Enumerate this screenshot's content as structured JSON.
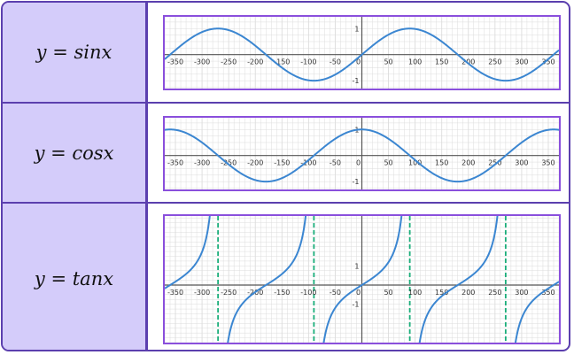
{
  "rows": [
    {
      "formula": "y = sinx",
      "function": "sin",
      "x_ticks": [
        "-350",
        "-300",
        "-250",
        "-200",
        "-150",
        "-100",
        "-50",
        "0",
        "50",
        "100",
        "150",
        "200",
        "250",
        "300",
        "350"
      ],
      "y_ticks": [
        "1",
        "-1"
      ],
      "xlim": [
        -370,
        370
      ],
      "ylim": [
        -1.3,
        1.45
      ]
    },
    {
      "formula": "y = cosx",
      "function": "cos",
      "x_ticks": [
        "-350",
        "-300",
        "-250",
        "-200",
        "-150",
        "-100",
        "-50",
        "0",
        "50",
        "100",
        "150",
        "200",
        "250",
        "300",
        "350"
      ],
      "y_ticks": [
        "1",
        "-1"
      ],
      "xlim": [
        -370,
        370
      ],
      "ylim": [
        -1.3,
        1.45
      ]
    },
    {
      "formula": "y = tanx",
      "function": "tan",
      "x_ticks": [
        "-350",
        "-300",
        "-250",
        "-200",
        "-150",
        "-100",
        "-50",
        "0",
        "50",
        "100",
        "150",
        "200",
        "250",
        "300",
        "350"
      ],
      "y_ticks": [
        "1",
        "-1"
      ],
      "xlim": [
        -370,
        370
      ],
      "ylim": [
        -3,
        3.6
      ],
      "asymptotes": [
        -270,
        -90,
        90,
        270
      ]
    }
  ],
  "colors": {
    "border": "#5b3fae",
    "label_bg": "#d4ccfa",
    "plot_border": "#8a4fdc",
    "curve": "#3b86d1",
    "asymptote": "#1aae7a",
    "grid": "#dcdcdc",
    "axis": "#555555"
  }
}
